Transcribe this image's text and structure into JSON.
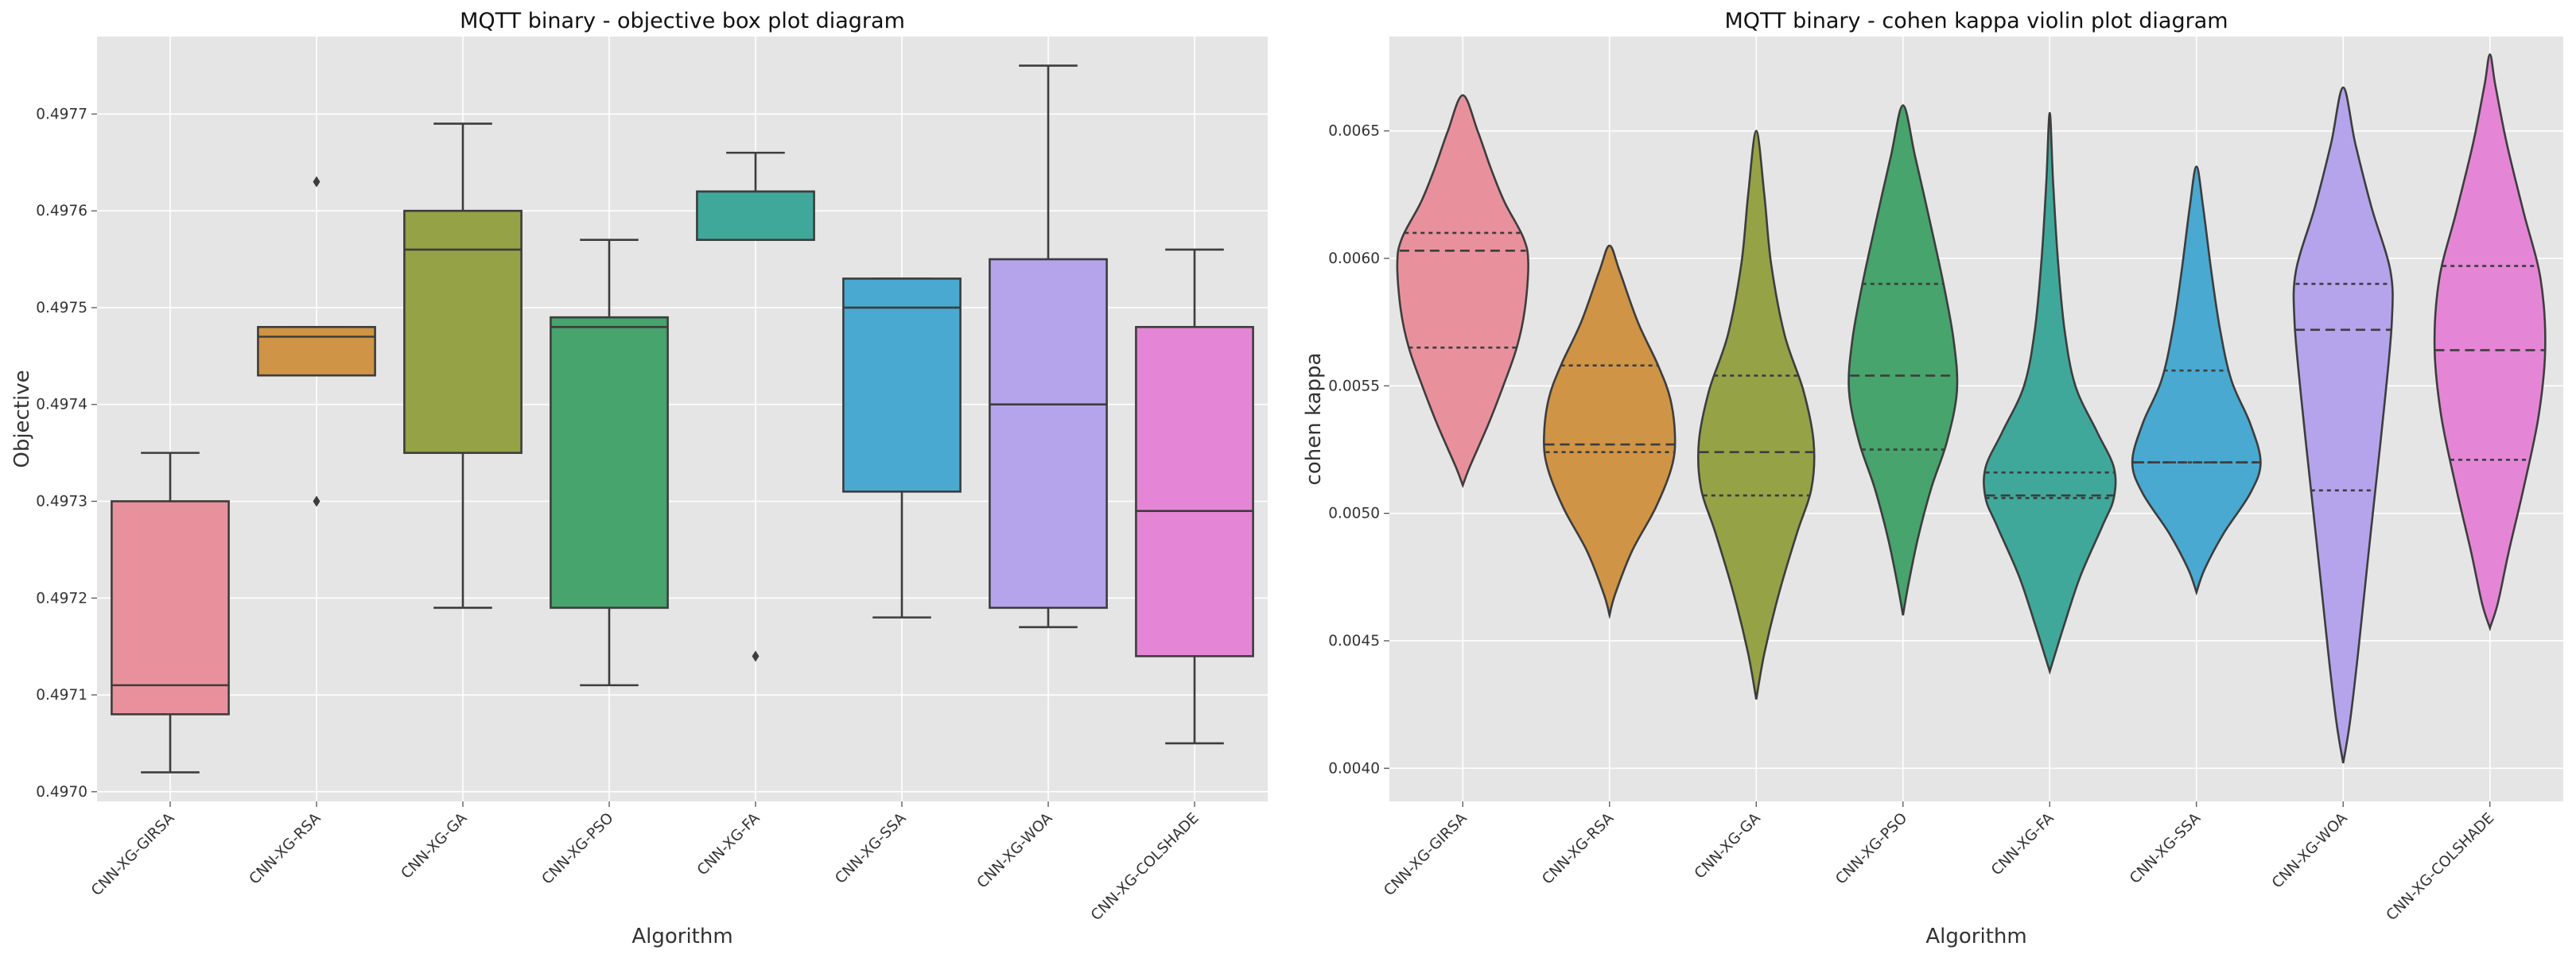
{
  "chart_data": [
    {
      "type": "box",
      "title": "MQTT binary -  objective box plot diagram",
      "xlabel": "Algorithm",
      "ylabel": "Objective",
      "ylim": [
        0.49699,
        0.49778
      ],
      "yticks": [
        "0.4970",
        "0.4971",
        "0.4972",
        "0.4973",
        "0.4974",
        "0.4975",
        "0.4976",
        "0.4977"
      ],
      "categories": [
        "CNN-XG-GIRSA",
        "CNN-XG-RSA",
        "CNN-XG-GA",
        "CNN-XG-PSO",
        "CNN-XG-FA",
        "CNN-XG-SSA",
        "CNN-XG-WOA",
        "CNN-XG-COLSHADE"
      ],
      "colors": [
        "#e8919c",
        "#cf9445",
        "#96a246",
        "#46a46c",
        "#3fa89b",
        "#49a9d1",
        "#b5a4ec",
        "#e486d5"
      ],
      "boxes": [
        {
          "whislo": 0.49702,
          "q1": 0.49708,
          "med": 0.49711,
          "q3": 0.4973,
          "whishi": 0.49735,
          "fliers": []
        },
        {
          "whislo": 0.49743,
          "q1": 0.49743,
          "med": 0.49747,
          "q3": 0.49748,
          "whishi": 0.49748,
          "fliers": [
            0.49763,
            0.4973
          ]
        },
        {
          "whislo": 0.49719,
          "q1": 0.49735,
          "med": 0.49756,
          "q3": 0.4976,
          "whishi": 0.49769,
          "fliers": []
        },
        {
          "whislo": 0.49711,
          "q1": 0.49719,
          "med": 0.49748,
          "q3": 0.49749,
          "whishi": 0.49757,
          "fliers": []
        },
        {
          "whislo": 0.49757,
          "q1": 0.49757,
          "med": 0.49762,
          "q3": 0.49762,
          "whishi": 0.49766,
          "fliers": [
            0.49714
          ]
        },
        {
          "whislo": 0.49718,
          "q1": 0.49731,
          "med": 0.4975,
          "q3": 0.49753,
          "whishi": 0.49753,
          "fliers": []
        },
        {
          "whislo": 0.49717,
          "q1": 0.49719,
          "med": 0.4974,
          "q3": 0.49755,
          "whishi": 0.49775,
          "fliers": []
        },
        {
          "whislo": 0.49705,
          "q1": 0.49714,
          "med": 0.49729,
          "q3": 0.49748,
          "whishi": 0.49756,
          "fliers": []
        }
      ]
    },
    {
      "type": "violin",
      "title": "MQTT binary - cohen kappa violin plot diagram",
      "xlabel": "Algorithm",
      "ylabel": "cohen kappa",
      "ylim": [
        0.00387,
        0.00687
      ],
      "yticks": [
        "0.0040",
        "0.0045",
        "0.0050",
        "0.0055",
        "0.0060",
        "0.0065"
      ],
      "categories": [
        "CNN-XG-GIRSA",
        "CNN-XG-RSA",
        "CNN-XG-GA",
        "CNN-XG-PSO",
        "CNN-XG-FA",
        "CNN-XG-SSA",
        "CNN-XG-WOA",
        "CNN-XG-COLSHADE"
      ],
      "colors": [
        "#e8919c",
        "#cf9445",
        "#96a246",
        "#46a46c",
        "#3fa89b",
        "#49a9d1",
        "#b5a4ec",
        "#e486d5"
      ],
      "violins": [
        {
          "profile": [
            [
              0.00511,
              0
            ],
            [
              0.00518,
              0.1
            ],
            [
              0.00535,
              0.38
            ],
            [
              0.0055,
              0.6
            ],
            [
              0.00565,
              0.8
            ],
            [
              0.0058,
              0.92
            ],
            [
              0.00598,
              0.97
            ],
            [
              0.00608,
              0.9
            ],
            [
              0.00622,
              0.62
            ],
            [
              0.00635,
              0.42
            ],
            [
              0.0065,
              0.22
            ],
            [
              0.00664,
              0
            ]
          ],
          "quartiles": [
            0.00565,
            0.00603,
            0.0061
          ]
        },
        {
          "profile": [
            [
              0.0046,
              0
            ],
            [
              0.00468,
              0.08
            ],
            [
              0.00485,
              0.33
            ],
            [
              0.00502,
              0.68
            ],
            [
              0.00518,
              0.92
            ],
            [
              0.0053,
              0.97
            ],
            [
              0.00545,
              0.9
            ],
            [
              0.00558,
              0.72
            ],
            [
              0.00575,
              0.42
            ],
            [
              0.00595,
              0.15
            ],
            [
              0.00605,
              0
            ]
          ],
          "quartiles": [
            0.00524,
            0.00527,
            0.00558
          ]
        },
        {
          "profile": [
            [
              0.00427,
              0
            ],
            [
              0.00445,
              0.12
            ],
            [
              0.00468,
              0.33
            ],
            [
              0.00492,
              0.6
            ],
            [
              0.0051,
              0.82
            ],
            [
              0.00528,
              0.85
            ],
            [
              0.00548,
              0.7
            ],
            [
              0.0057,
              0.42
            ],
            [
              0.00598,
              0.22
            ],
            [
              0.00625,
              0.12
            ],
            [
              0.0065,
              0
            ]
          ],
          "quartiles": [
            0.00507,
            0.00524,
            0.00554
          ]
        },
        {
          "profile": [
            [
              0.0046,
              0
            ],
            [
              0.00472,
              0.08
            ],
            [
              0.0049,
              0.22
            ],
            [
              0.0051,
              0.42
            ],
            [
              0.00528,
              0.65
            ],
            [
              0.00548,
              0.8
            ],
            [
              0.00568,
              0.75
            ],
            [
              0.0059,
              0.6
            ],
            [
              0.00612,
              0.42
            ],
            [
              0.0064,
              0.18
            ],
            [
              0.0066,
              0
            ]
          ],
          "quartiles": [
            0.00525,
            0.00554,
            0.0059
          ]
        },
        {
          "profile": [
            [
              0.00438,
              0
            ],
            [
              0.00455,
              0.2
            ],
            [
              0.00475,
              0.45
            ],
            [
              0.00495,
              0.78
            ],
            [
              0.00506,
              0.95
            ],
            [
              0.00518,
              0.95
            ],
            [
              0.00532,
              0.7
            ],
            [
              0.0055,
              0.38
            ],
            [
              0.00572,
              0.22
            ],
            [
              0.006,
              0.12
            ],
            [
              0.0063,
              0.05
            ],
            [
              0.00657,
              0
            ]
          ],
          "quartiles": [
            0.00506,
            0.00507,
            0.00516
          ]
        },
        {
          "profile": [
            [
              0.00469,
              0
            ],
            [
              0.00478,
              0.12
            ],
            [
              0.00492,
              0.4
            ],
            [
              0.00508,
              0.8
            ],
            [
              0.0052,
              0.95
            ],
            [
              0.00535,
              0.8
            ],
            [
              0.00552,
              0.52
            ],
            [
              0.00572,
              0.35
            ],
            [
              0.00595,
              0.22
            ],
            [
              0.0062,
              0.1
            ],
            [
              0.00636,
              0
            ]
          ],
          "quartiles": [
            0.0052,
            0.0052,
            0.00556
          ]
        },
        {
          "profile": [
            [
              0.00402,
              0
            ],
            [
              0.00418,
              0.1
            ],
            [
              0.00445,
              0.22
            ],
            [
              0.00478,
              0.35
            ],
            [
              0.0051,
              0.48
            ],
            [
              0.00545,
              0.62
            ],
            [
              0.00575,
              0.72
            ],
            [
              0.00595,
              0.7
            ],
            [
              0.0062,
              0.42
            ],
            [
              0.00645,
              0.18
            ],
            [
              0.00667,
              0
            ]
          ],
          "quartiles": [
            0.00509,
            0.00572,
            0.0059
          ]
        },
        {
          "profile": [
            [
              0.00455,
              0
            ],
            [
              0.00465,
              0.12
            ],
            [
              0.00485,
              0.28
            ],
            [
              0.0051,
              0.5
            ],
            [
              0.00538,
              0.72
            ],
            [
              0.00565,
              0.82
            ],
            [
              0.00592,
              0.75
            ],
            [
              0.00618,
              0.5
            ],
            [
              0.00645,
              0.25
            ],
            [
              0.00668,
              0.08
            ],
            [
              0.0068,
              0
            ]
          ],
          "quartiles": [
            0.00521,
            0.00564,
            0.00597
          ]
        }
      ]
    }
  ]
}
